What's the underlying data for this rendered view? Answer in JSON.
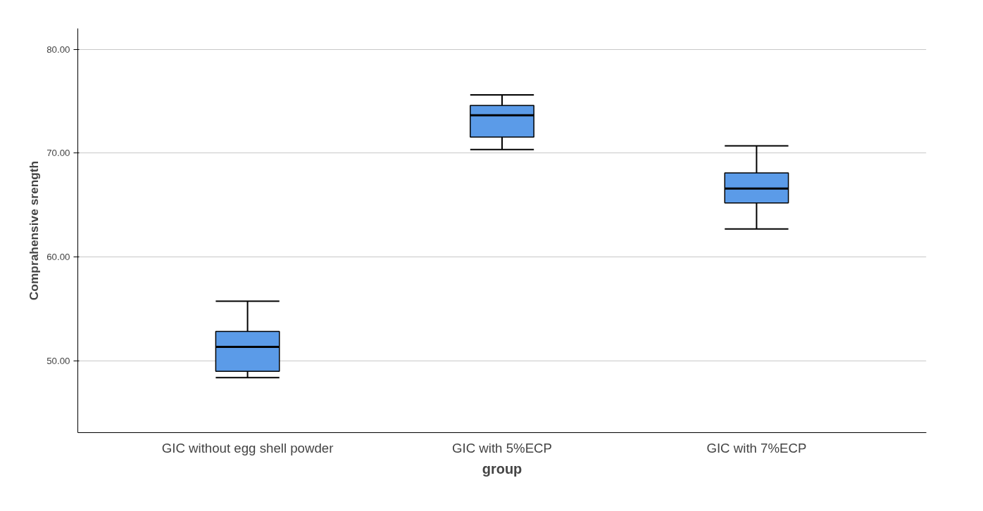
{
  "chart_data": {
    "type": "box",
    "xlabel": "group",
    "ylabel": "Comprahensive srength",
    "categories": [
      "GIC without egg shell powder",
      "GIC with 5%ECP",
      "GIC with 7%ECP"
    ],
    "series": [
      {
        "color": "#5b9be8",
        "boxes": [
          {
            "low": 48.4,
            "q1": 49.0,
            "median": 51.35,
            "q3": 52.85,
            "high": 55.75
          },
          {
            "low": 70.35,
            "q1": 71.55,
            "median": 73.65,
            "q3": 74.6,
            "high": 75.6
          },
          {
            "low": 62.7,
            "q1": 65.2,
            "median": 66.6,
            "q3": 68.1,
            "high": 70.7
          }
        ]
      }
    ],
    "ylim": [
      43.1,
      82
    ],
    "yticks": [
      {
        "value": 50,
        "label": "50.00"
      },
      {
        "value": 60,
        "label": "60.00"
      },
      {
        "value": 70,
        "label": "70.00"
      },
      {
        "value": 80,
        "label": "80.00"
      }
    ],
    "grid": "y"
  }
}
